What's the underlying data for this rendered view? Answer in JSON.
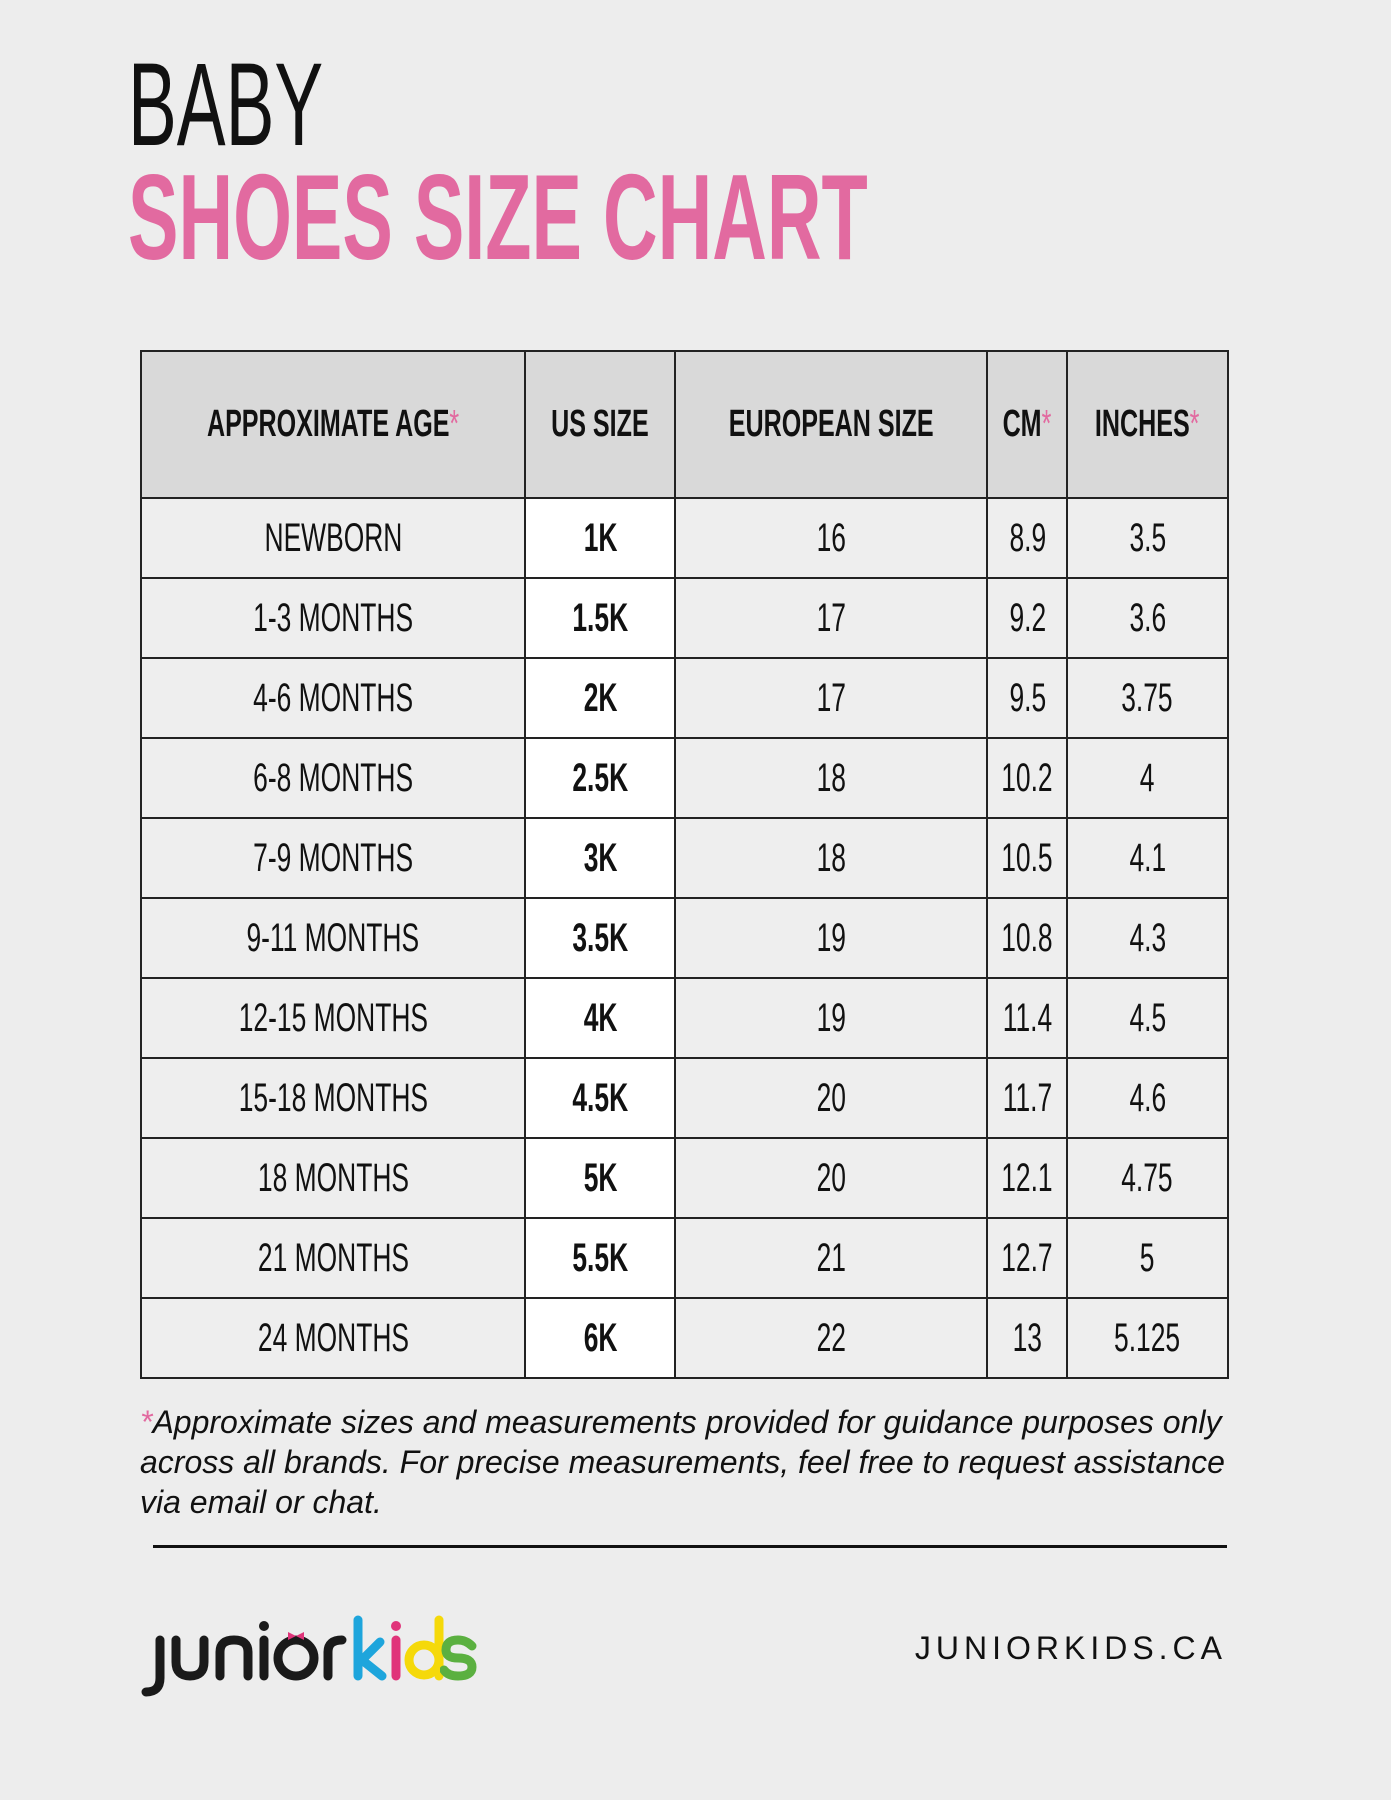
{
  "title_line1": "BABY",
  "title_line2": "SHOES SIZE CHART",
  "colors": {
    "accent_pink": "#e26aa0",
    "header_bg": "#d9d9d9",
    "row_bg": "#eeeeee",
    "us_col_bg": "#ffffff"
  },
  "table": {
    "headers": [
      "APPROXIMATE AGE",
      "US SIZE",
      "EUROPEAN SIZE",
      "CM",
      "INCHES"
    ],
    "header_star": "*",
    "rows": [
      [
        "NEWBORN",
        "1K",
        "16",
        "8.9",
        "3.5"
      ],
      [
        "1-3 MONTHS",
        "1.5K",
        "17",
        "9.2",
        "3.6"
      ],
      [
        "4-6 MONTHS",
        "2K",
        "17",
        "9.5",
        "3.75"
      ],
      [
        "6-8 MONTHS",
        "2.5K",
        "18",
        "10.2",
        "4"
      ],
      [
        "7-9 MONTHS",
        "3K",
        "18",
        "10.5",
        "4.1"
      ],
      [
        "9-11 MONTHS",
        "3.5K",
        "19",
        "10.8",
        "4.3"
      ],
      [
        "12-15 MONTHS",
        "4K",
        "19",
        "11.4",
        "4.5"
      ],
      [
        "15-18 MONTHS",
        "4.5K",
        "20",
        "11.7",
        "4.6"
      ],
      [
        "18 MONTHS",
        "5K",
        "20",
        "12.1",
        "4.75"
      ],
      [
        "21 MONTHS",
        "5.5K",
        "21",
        "12.7",
        "5"
      ],
      [
        "24 MONTHS",
        "6K",
        "22",
        "13",
        "5.125"
      ]
    ]
  },
  "footnote": {
    "star": "*",
    "text": "Approximate sizes and measurements provided for guidance purposes only across all brands. For precise measurements, feel free to request assistance via email or chat."
  },
  "footer": {
    "logo_text": "juniorkids",
    "url": "JUNIORKIDS.CA"
  }
}
